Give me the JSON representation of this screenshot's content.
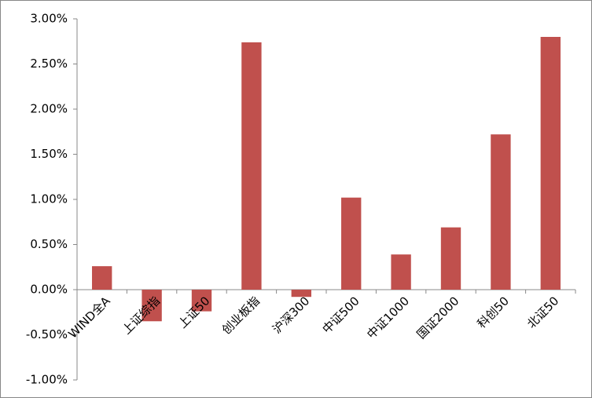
{
  "chart_data": {
    "type": "bar",
    "categories": [
      "WIND全A",
      "上证综指",
      "上证50",
      "创业板指",
      "沪深300",
      "中证500",
      "中证1000",
      "国证2000",
      "科创50",
      "北证50"
    ],
    "values": [
      0.26,
      -0.35,
      -0.24,
      2.74,
      -0.08,
      1.02,
      0.39,
      0.69,
      1.72,
      2.8
    ],
    "color": "#C0504D",
    "ylim": [
      -1,
      3
    ],
    "yticks": [
      {
        "value": -1,
        "label": "-1.00%"
      },
      {
        "value": -0.5,
        "label": "-0.50%"
      },
      {
        "value": 0,
        "label": "0.00%"
      },
      {
        "value": 0.5,
        "label": "0.50%"
      },
      {
        "value": 1,
        "label": "1.00%"
      },
      {
        "value": 1.5,
        "label": "1.50%"
      },
      {
        "value": 2,
        "label": "2.00%"
      },
      {
        "value": 2.5,
        "label": "2.50%"
      },
      {
        "value": 3,
        "label": "3.00%"
      }
    ],
    "grid": false
  }
}
